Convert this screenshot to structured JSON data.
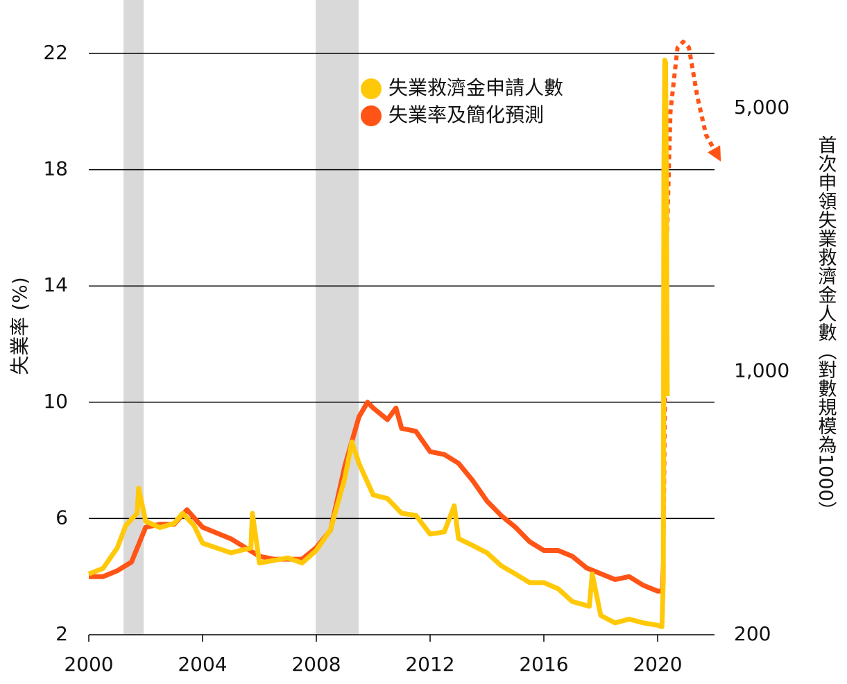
{
  "chart_data": {
    "type": "line",
    "ylabel": "失業率 (%)",
    "y2label": "首次申領失業救濟金人數（對數規模為1000）",
    "xlim": [
      2000,
      2022
    ],
    "xticks": [
      2000,
      2004,
      2008,
      2012,
      2016,
      2020
    ],
    "ylim": [
      2,
      22
    ],
    "yticks": [
      2,
      6,
      10,
      14,
      18,
      22
    ],
    "y2lim": [
      200,
      6985
    ],
    "y2log": true,
    "y2ticks": [
      200,
      {
        "value": 1000,
        "label": "1,000"
      },
      {
        "value": 5000,
        "label": "5,000"
      }
    ],
    "grid": true,
    "legend": "top-right",
    "recessions": {
      "color": "#d9d9d9",
      "spans": [
        [
          2001.22,
          2001.93
        ],
        [
          2007.98,
          2009.49
        ]
      ]
    },
    "series": [
      {
        "name": "失業救濟金申請人數",
        "color": "#ffc90a",
        "axis": "y2",
        "x": [
          2000.0,
          2000.5,
          2001.0,
          2001.3,
          2001.7,
          2001.75,
          2002.0,
          2002.5,
          2003.0,
          2003.3,
          2003.7,
          2004.0,
          2004.5,
          2005.0,
          2005.7,
          2005.75,
          2006.0,
          2006.5,
          2007.0,
          2007.5,
          2008.0,
          2008.5,
          2009.0,
          2009.25,
          2009.5,
          2010.0,
          2010.5,
          2011.0,
          2011.5,
          2012.0,
          2012.5,
          2012.85,
          2013.0,
          2013.5,
          2014.0,
          2014.5,
          2015.0,
          2015.5,
          2016.0,
          2016.5,
          2017.0,
          2017.6,
          2017.7,
          2018.0,
          2018.5,
          2019.0,
          2019.5,
          2020.0,
          2020.15,
          2020.2,
          2020.22,
          2020.25,
          2020.28,
          2020.31,
          2020.34
        ],
        "values": [
          290,
          300,
          340,
          390,
          420,
          490,
          400,
          385,
          395,
          420,
          390,
          350,
          340,
          330,
          340,
          420,
          310,
          315,
          320,
          310,
          335,
          380,
          520,
          650,
          570,
          470,
          460,
          420,
          415,
          370,
          375,
          440,
          360,
          345,
          330,
          305,
          290,
          275,
          275,
          265,
          245,
          238,
          290,
          225,
          215,
          220,
          215,
          212,
          210,
          280,
          3300,
          6700,
          6600,
          3000,
          860
        ]
      },
      {
        "name": "失業率及簡化預測",
        "color": "#ff5416",
        "axis": "y",
        "x": [
          2000.0,
          2000.5,
          2001.0,
          2001.5,
          2002.0,
          2002.5,
          2003.0,
          2003.45,
          2004.0,
          2004.5,
          2005.0,
          2005.5,
          2006.0,
          2006.5,
          2007.0,
          2007.5,
          2008.0,
          2008.5,
          2009.0,
          2009.5,
          2009.8,
          2010.0,
          2010.5,
          2010.8,
          2011.0,
          2011.5,
          2012.0,
          2012.5,
          2013.0,
          2013.5,
          2014.0,
          2014.5,
          2015.0,
          2015.5,
          2016.0,
          2016.5,
          2017.0,
          2017.5,
          2018.0,
          2018.5,
          2019.0,
          2019.5,
          2020.0,
          2020.17,
          2020.2
        ],
        "values": [
          4.0,
          4.0,
          4.2,
          4.5,
          5.7,
          5.8,
          5.8,
          6.3,
          5.7,
          5.5,
          5.3,
          5.0,
          4.7,
          4.6,
          4.6,
          4.6,
          5.0,
          5.6,
          7.8,
          9.5,
          10.0,
          9.8,
          9.4,
          9.8,
          9.1,
          9.0,
          8.3,
          8.2,
          7.9,
          7.3,
          6.6,
          6.1,
          5.7,
          5.2,
          4.9,
          4.9,
          4.7,
          4.3,
          4.1,
          3.9,
          4.0,
          3.7,
          3.5,
          3.5,
          4.4
        ],
        "forecast": {
          "x": [
            2020.2,
            2020.3,
            2020.45,
            2020.7,
            2020.9,
            2021.1,
            2021.4,
            2021.7,
            2022.1
          ],
          "values": [
            4.4,
            14.7,
            20.0,
            22.2,
            22.4,
            22.2,
            20.5,
            19.2,
            18.5
          ]
        }
      }
    ]
  }
}
